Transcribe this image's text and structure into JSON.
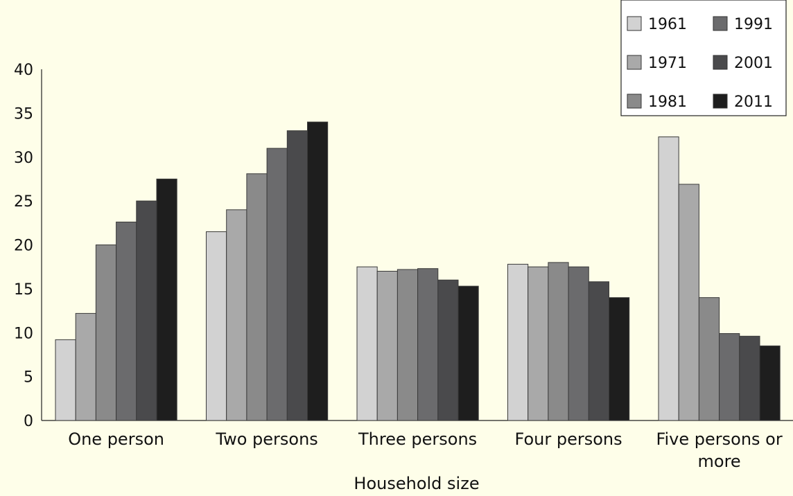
{
  "chart_data": {
    "type": "bar",
    "title": "",
    "xlabel": "Household size",
    "ylabel": "",
    "ylim": [
      0,
      40
    ],
    "yticks": [
      0,
      5,
      10,
      15,
      20,
      25,
      30,
      35,
      40
    ],
    "grid": false,
    "legend_position": "top-right",
    "categories": [
      [
        "One person"
      ],
      [
        "Two persons"
      ],
      [
        "Three persons"
      ],
      [
        "Four persons"
      ],
      [
        "Five persons or",
        "more"
      ]
    ],
    "series": [
      {
        "name": "1961",
        "color": "#d2d2d2",
        "values": [
          9.2,
          21.5,
          17.5,
          17.8,
          32.3
        ]
      },
      {
        "name": "1971",
        "color": "#a9a9a9",
        "values": [
          12.2,
          24.0,
          17.0,
          17.5,
          26.9
        ]
      },
      {
        "name": "1981",
        "color": "#8a8a8a",
        "values": [
          20.0,
          28.1,
          17.2,
          18.0,
          14.0
        ]
      },
      {
        "name": "1991",
        "color": "#6b6b6d",
        "values": [
          22.6,
          31.0,
          17.3,
          17.5,
          9.9
        ]
      },
      {
        "name": "2001",
        "color": "#4a4a4c",
        "values": [
          25.0,
          33.0,
          16.0,
          15.8,
          9.6
        ]
      },
      {
        "name": "2011",
        "color": "#1e1e1e",
        "values": [
          27.5,
          34.0,
          15.3,
          14.0,
          8.5
        ]
      }
    ]
  }
}
